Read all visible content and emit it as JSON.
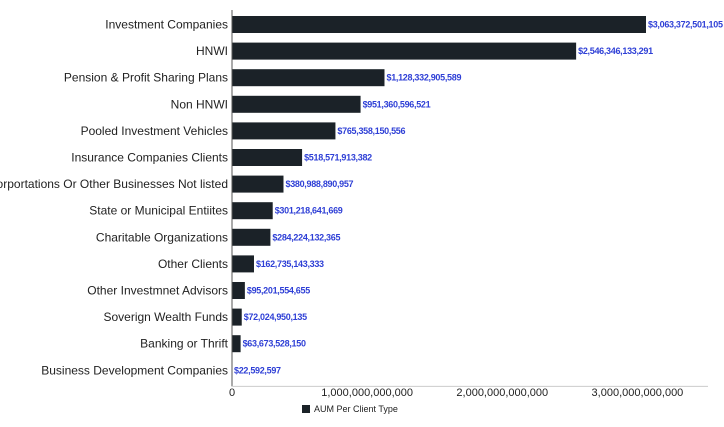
{
  "chart_data": {
    "type": "bar",
    "orientation": "horizontal",
    "categories": [
      "Investment Companies",
      "HNWI",
      "Pension & Profit Sharing Plans",
      "Non HNWI",
      "Pooled Investment Vehicles",
      "Insurance Companies Clients",
      "Corportations Or Other Businesses Not listed",
      "State or Municipal Entiites",
      "Charitable Organizations",
      "Other Clients",
      "Other Investmnet Advisors",
      "Soverign Wealth Funds",
      "Banking or Thrift",
      "Business Development Companies"
    ],
    "values": [
      3063372501105,
      2546346133291,
      1128332905589,
      951360596521,
      765358150556,
      518571913382,
      380988890957,
      301218641669,
      284224132365,
      162735143333,
      95201554655,
      72024950135,
      63673528150,
      22592597
    ],
    "value_labels": [
      "$3,063,372,501,105",
      "$2,546,346,133,291",
      "$1,128,332,905,589",
      "$951,360,596,521",
      "$765,358,150,556",
      "$518,571,913,382",
      "$380,988,890,957",
      "$301,218,641,669",
      "$284,224,132,365",
      "$162,735,143,333",
      "$95,201,554,655",
      "$72,024,950,135",
      "$63,673,528,150",
      "$22,592,597"
    ],
    "x_ticks": [
      {
        "value": 0,
        "label": "0"
      },
      {
        "value": 1000000000000,
        "label": "1,000,000,000,000"
      },
      {
        "value": 2000000000000,
        "label": "2,000,000,000,000"
      },
      {
        "value": 3000000000000,
        "label": "3,000,000,000,000"
      }
    ],
    "xlim": [
      0,
      3063372501105
    ],
    "series": [
      {
        "name": "AUM Per Client Type"
      }
    ],
    "legend_position": "bottom",
    "grid": false,
    "colors": {
      "bar": "#1b2228",
      "value_label": "#2e3fd6",
      "axis": "#555555"
    }
  }
}
